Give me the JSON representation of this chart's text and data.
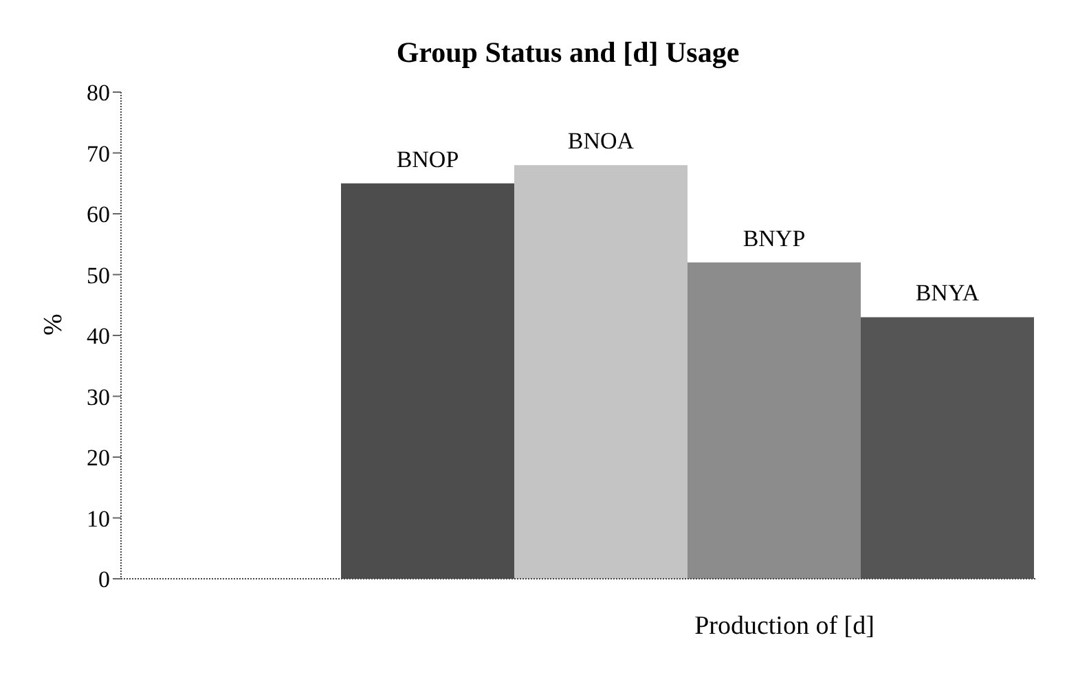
{
  "chart_data": {
    "type": "bar",
    "title": "Group Status and [d] Usage",
    "xlabel": "Production of [d]",
    "ylabel": "%",
    "categories": [
      null
    ],
    "series": [
      {
        "name": "BNOP",
        "color": "#4d4d4d",
        "values": [
          65
        ]
      },
      {
        "name": "BNOA",
        "color": "#c4c4c4",
        "values": [
          68
        ]
      },
      {
        "name": "BNYP",
        "color": "#8c8c8c",
        "values": [
          52
        ]
      },
      {
        "name": "BNYA",
        "color": "#555555",
        "values": [
          43
        ]
      }
    ],
    "ylim": [
      0,
      80
    ],
    "yticks": [
      0,
      10,
      20,
      30,
      40,
      50,
      60,
      70,
      80
    ],
    "grid": false,
    "legend": false
  }
}
